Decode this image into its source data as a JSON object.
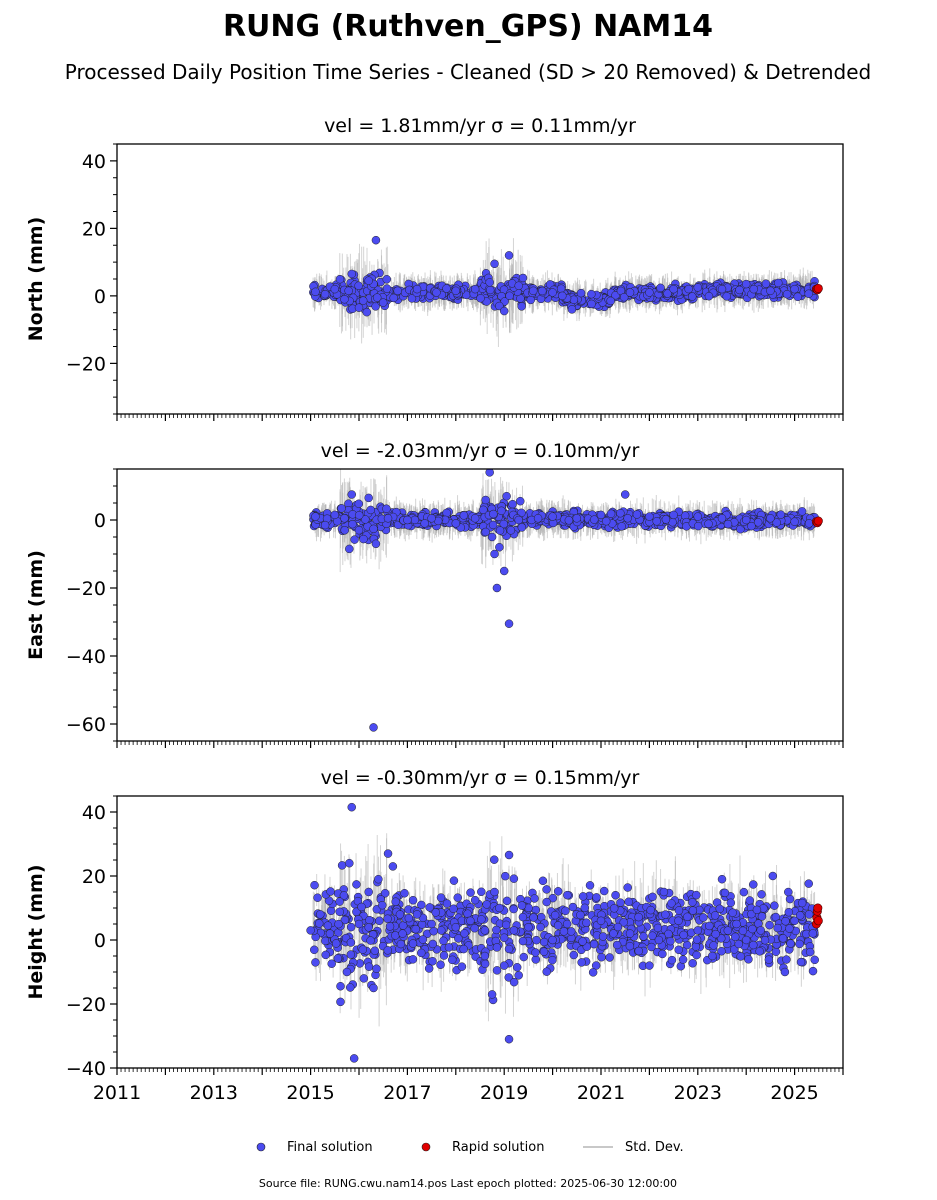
{
  "title": "RUNG (Ruthven_GPS) NAM14",
  "subtitle": "Processed Daily Position Time Series - Cleaned (SD > 20 Removed) & Detrended",
  "legend": {
    "final": "Final solution",
    "rapid": "Rapid solution",
    "std": "Std. Dev."
  },
  "footer": "Source file: RUNG.cwu.nam14.pos  Last epoch plotted: 2025-06-30 12:00:00",
  "colors": {
    "final": "#4b4bf0",
    "rapid": "#e00000",
    "std": "#b0b0b0"
  },
  "chart_data": [
    {
      "type": "scatter",
      "title": "vel = 1.81mm/yr   σ = 0.11mm/yr",
      "ylabel": "North (mm)",
      "xlim": [
        2011,
        2026
      ],
      "ylim": [
        -35,
        45
      ],
      "yticks": [
        -20,
        0,
        20,
        40
      ],
      "ytick_labels": [
        "−20",
        "0",
        "20",
        "40"
      ],
      "series": [
        {
          "name": "Final solution",
          "x": [
            2015.1,
            2015.3,
            2015.5,
            2015.7,
            2015.85,
            2016.0,
            2016.2,
            2016.35,
            2016.5,
            2016.8,
            2017.2,
            2017.6,
            2018.0,
            2018.4,
            2018.7,
            2018.8,
            2018.9,
            2019.0,
            2019.1,
            2019.3,
            2019.6,
            2020.0,
            2020.2,
            2020.4,
            2020.8,
            2021.2,
            2021.6,
            2022.0,
            2022.5,
            2023.0,
            2023.5,
            2024.0,
            2024.5,
            2025.0,
            2025.4
          ],
          "y": [
            1.2,
            0.5,
            2.0,
            -1.0,
            6.5,
            -3.5,
            4.5,
            16.5,
            -2.0,
            1.5,
            2.0,
            1.0,
            1.5,
            2.0,
            4.0,
            9.5,
            -3.0,
            -4.5,
            12.0,
            3.0,
            1.5,
            1.0,
            0.0,
            -4.0,
            0.5,
            -1.5,
            1.0,
            1.0,
            2.0,
            2.5,
            2.0,
            3.5,
            1.5,
            2.0,
            2.5
          ]
        },
        {
          "name": "Rapid solution",
          "x": [
            2025.45,
            2025.47,
            2025.49
          ],
          "y": [
            2.0,
            1.8,
            2.2
          ]
        }
      ]
    },
    {
      "type": "scatter",
      "title": "vel = -2.03mm/yr   σ = 0.10mm/yr",
      "ylabel": "East (mm)",
      "xlim": [
        2011,
        2026
      ],
      "ylim": [
        -65,
        15
      ],
      "yticks": [
        -60,
        -40,
        -20,
        0
      ],
      "ytick_labels": [
        "−60",
        "−40",
        "−20",
        "0"
      ],
      "series": [
        {
          "name": "Final solution",
          "x": [
            2015.1,
            2015.3,
            2015.5,
            2015.7,
            2015.8,
            2015.85,
            2016.0,
            2016.2,
            2016.3,
            2016.35,
            2016.6,
            2017.0,
            2017.5,
            2018.0,
            2018.4,
            2018.7,
            2018.75,
            2018.8,
            2018.85,
            2018.9,
            2019.0,
            2019.05,
            2019.1,
            2019.3,
            2019.7,
            2020.0,
            2020.5,
            2021.0,
            2021.4,
            2021.5,
            2022.0,
            2022.5,
            2023.0,
            2023.5,
            2024.0,
            2024.5,
            2025.0,
            2025.3
          ],
          "y": [
            1.0,
            -1.5,
            1.5,
            0.5,
            -8.5,
            7.5,
            -3.0,
            6.5,
            -61.0,
            -7.0,
            0.5,
            0.0,
            0.5,
            -1.0,
            0.5,
            14.0,
            -5.0,
            -10.0,
            -20.0,
            -8.0,
            -15.0,
            7.0,
            -30.5,
            0.0,
            0.5,
            1.0,
            0.5,
            1.5,
            2.0,
            7.5,
            1.0,
            1.5,
            1.0,
            0.5,
            0.0,
            0.5,
            -0.5,
            -1.0
          ]
        },
        {
          "name": "Rapid solution",
          "x": [
            2025.45,
            2025.47,
            2025.49
          ],
          "y": [
            -0.5,
            -0.8,
            -0.3
          ]
        }
      ]
    },
    {
      "type": "scatter",
      "title": "vel = -0.30mm/yr   σ = 0.15mm/yr",
      "ylabel": "Height (mm)",
      "xlim": [
        2011,
        2026
      ],
      "ylim": [
        -40,
        45
      ],
      "yticks": [
        -40,
        -20,
        0,
        20,
        40
      ],
      "ytick_labels": [
        "−40",
        "−20",
        "0",
        "20",
        "40"
      ],
      "xticks": [
        2011,
        2013,
        2015,
        2017,
        2019,
        2021,
        2023,
        2025
      ],
      "xtick_labels": [
        "2011",
        "2013",
        "2015",
        "2017",
        "2019",
        "2021",
        "2023",
        "2025"
      ],
      "series": [
        {
          "name": "Final solution",
          "x": [
            2015.0,
            2015.1,
            2015.2,
            2015.4,
            2015.6,
            2015.75,
            2015.8,
            2015.85,
            2015.9,
            2016.0,
            2016.1,
            2016.2,
            2016.3,
            2016.4,
            2016.6,
            2016.7,
            2016.9,
            2017.2,
            2017.5,
            2017.7,
            2018.0,
            2018.3,
            2018.6,
            2018.75,
            2018.8,
            2018.9,
            2019.0,
            2019.1,
            2019.2,
            2019.5,
            2019.8,
            2020.0,
            2020.3,
            2020.6,
            2021.0,
            2021.3,
            2021.6,
            2022.0,
            2022.3,
            2022.6,
            2023.0,
            2023.3,
            2023.5,
            2023.8,
            2024.0,
            2024.3,
            2024.55,
            2024.8,
            2025.0,
            2025.3
          ],
          "y": [
            3.0,
            -7.0,
            8.0,
            2.0,
            12.0,
            -10.0,
            24.0,
            41.5,
            -37.0,
            5.0,
            -12.0,
            15.0,
            -15.0,
            19.0,
            27.0,
            23.0,
            2.0,
            8.0,
            5.0,
            3.0,
            4.0,
            6.0,
            -5.0,
            -17.0,
            15.0,
            10.0,
            -8.0,
            -31.0,
            3.0,
            4.0,
            18.5,
            0.0,
            5.0,
            -7.0,
            6.0,
            14.0,
            2.0,
            -8.0,
            15.0,
            6.0,
            3.0,
            -5.0,
            19.0,
            5.0,
            0.0,
            3.0,
            20.0,
            -10.0,
            6.0,
            8.0
          ]
        },
        {
          "name": "Rapid solution",
          "x": [
            2025.45,
            2025.46,
            2025.47,
            2025.48,
            2025.49
          ],
          "y": [
            5.0,
            7.0,
            9.0,
            10.0,
            6.0
          ]
        }
      ]
    }
  ]
}
